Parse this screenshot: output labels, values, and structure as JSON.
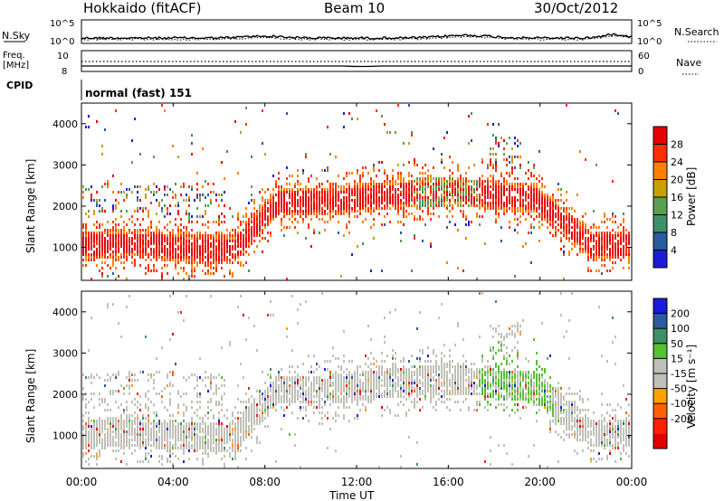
{
  "header": {
    "title": "Hokkaido (fitACF)",
    "beam": "Beam 10",
    "date": "30/Oct/2012"
  },
  "colors": {
    "power": [
      "#1b1bd8",
      "#2a5aa0",
      "#3f8f68",
      "#5aa050",
      "#c8a000",
      "#ff8000",
      "#ff3000",
      "#e80000"
    ],
    "velocity": [
      "#1b1bd8",
      "#2a5aa0",
      "#3f8f68",
      "#55c030",
      "#c0c0b8",
      "#c0c0b8",
      "#ffa000",
      "#ff6000",
      "#ff2000",
      "#e00000"
    ]
  },
  "chart_data": [
    {
      "type": "line",
      "panel": "noise",
      "left_label": "N.Sky",
      "right_label": "N.Search",
      "left_ticks": [
        "10^5",
        "10^0"
      ],
      "right_ticks": [
        "10^5",
        "10^0"
      ],
      "x": [
        "00:00",
        "04:00",
        "08:00",
        "12:00",
        "16:00",
        "20:00",
        "00:00"
      ]
    },
    {
      "type": "line",
      "panel": "frequency",
      "left_label_top": "Freq.",
      "left_label_unit": "[MHz]",
      "right_label": "Nave",
      "left_ticks": [
        "10",
        "8"
      ],
      "right_ticks": [
        "60",
        "0"
      ]
    },
    {
      "type": "table",
      "panel": "cpid",
      "label": "CPID",
      "text": "normal (fast) 151"
    },
    {
      "type": "heatmap",
      "panel": "power",
      "ylabel": "Slant Range [km]",
      "yticks": [
        "1000",
        "2000",
        "3000",
        "4000"
      ],
      "x": [
        "00:00",
        "04:00",
        "08:00",
        "12:00",
        "16:00",
        "20:00",
        "00:00"
      ],
      "colorbar_label": "Power [dB]",
      "colorbar_ticks": [
        "4",
        "8",
        "12",
        "16",
        "20",
        "24",
        "28"
      ]
    },
    {
      "type": "heatmap",
      "panel": "velocity",
      "ylabel": "Slant Range [km]",
      "yticks": [
        "1000",
        "2000",
        "3000",
        "4000"
      ],
      "x": [
        "00:00",
        "04:00",
        "08:00",
        "12:00",
        "16:00",
        "20:00",
        "00:00"
      ],
      "xlabel": "Time UT",
      "colorbar_label": "Velocity [m s⁻¹]",
      "colorbar_ticks": [
        "200",
        "100",
        "50",
        "15",
        "-15",
        "-50",
        "-100",
        "-200"
      ]
    }
  ]
}
